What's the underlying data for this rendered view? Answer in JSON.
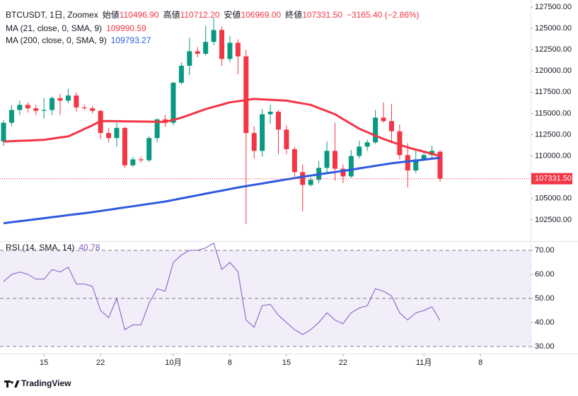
{
  "chart_data": [
    {
      "type": "candlestick",
      "legend": {
        "symbol": "BTCUSDT, 1日, Zoomex",
        "items": [
          {
            "label": "始値",
            "value": "110496.90"
          },
          {
            "label": "高値",
            "value": "110712.20"
          },
          {
            "label": "安値",
            "value": "106969.00"
          },
          {
            "label": "終値",
            "value": "107331.50"
          }
        ],
        "change": "−3165.40 (−2.86%)"
      },
      "last_price_label": "107331.50",
      "up_color": "#089981",
      "down_color": "#f23645",
      "xlim": [
        -0.44,
        65.2
      ],
      "ylim": [
        100080,
        128320
      ],
      "yticks": [
        {
          "value": 102500,
          "label": "102500.00"
        },
        {
          "value": 105000,
          "label": "105000.00"
        },
        {
          "value": 107500,
          "label": "107500.00"
        },
        {
          "value": 110000,
          "label": "110000.00"
        },
        {
          "value": 112500,
          "label": "112500.00"
        },
        {
          "value": 115000,
          "label": "115000.00"
        },
        {
          "value": 117500,
          "label": "117500.00"
        },
        {
          "value": 120000,
          "label": "120000.00"
        },
        {
          "value": 122500,
          "label": "122500.00"
        },
        {
          "value": 125000,
          "label": "125000.00"
        },
        {
          "value": 127500,
          "label": "127500.00"
        }
      ],
      "candles": [
        {
          "open": 111700,
          "high": 114200,
          "low": 111200,
          "close": 113900
        },
        {
          "open": 113900,
          "high": 116000,
          "low": 113500,
          "close": 115400
        },
        {
          "open": 115400,
          "high": 116500,
          "low": 114800,
          "close": 116000
        },
        {
          "open": 116000,
          "high": 116300,
          "low": 115100,
          "close": 115600
        },
        {
          "open": 115600,
          "high": 116000,
          "low": 114800,
          "close": 115300
        },
        {
          "open": 115300,
          "high": 116800,
          "low": 114400,
          "close": 115400
        },
        {
          "open": 115400,
          "high": 117000,
          "low": 114800,
          "close": 116800
        },
        {
          "open": 116800,
          "high": 117300,
          "low": 114800,
          "close": 116500
        },
        {
          "open": 116500,
          "high": 117900,
          "low": 116200,
          "close": 117100
        },
        {
          "open": 117100,
          "high": 117500,
          "low": 115200,
          "close": 115700
        },
        {
          "open": 115700,
          "high": 116000,
          "low": 115400,
          "close": 115600
        },
        {
          "open": 115600,
          "high": 115900,
          "low": 115000,
          "close": 115300
        },
        {
          "open": 115300,
          "high": 115400,
          "low": 112000,
          "close": 112700
        },
        {
          "open": 112700,
          "high": 113300,
          "low": 111600,
          "close": 112100
        },
        {
          "open": 112100,
          "high": 113900,
          "low": 111100,
          "close": 113300
        },
        {
          "open": 113300,
          "high": 113400,
          "low": 108600,
          "close": 108900
        },
        {
          "open": 108900,
          "high": 109900,
          "low": 108700,
          "close": 109600
        },
        {
          "open": 109600,
          "high": 109900,
          "low": 109200,
          "close": 109500
        },
        {
          "open": 109500,
          "high": 112300,
          "low": 109300,
          "close": 112100
        },
        {
          "open": 112100,
          "high": 114400,
          "low": 111600,
          "close": 114300
        },
        {
          "open": 114300,
          "high": 114800,
          "low": 113400,
          "close": 113900
        },
        {
          "open": 113900,
          "high": 118700,
          "low": 113600,
          "close": 118600
        },
        {
          "open": 118600,
          "high": 121000,
          "low": 118400,
          "close": 120600
        },
        {
          "open": 120600,
          "high": 123900,
          "low": 119500,
          "close": 122300
        },
        {
          "open": 122300,
          "high": 122800,
          "low": 121600,
          "close": 122000
        },
        {
          "open": 122000,
          "high": 125300,
          "low": 121800,
          "close": 123400
        },
        {
          "open": 123400,
          "high": 126200,
          "low": 123000,
          "close": 124800
        },
        {
          "open": 124800,
          "high": 125200,
          "low": 120600,
          "close": 121400
        },
        {
          "open": 121400,
          "high": 124100,
          "low": 121000,
          "close": 123300
        },
        {
          "open": 123300,
          "high": 123700,
          "low": 119600,
          "close": 121700
        },
        {
          "open": 121700,
          "high": 122500,
          "low": 102000,
          "close": 112700
        },
        {
          "open": 112700,
          "high": 113500,
          "low": 109700,
          "close": 110600
        },
        {
          "open": 110600,
          "high": 115500,
          "low": 109900,
          "close": 114900
        },
        {
          "open": 114900,
          "high": 116000,
          "low": 113800,
          "close": 115200
        },
        {
          "open": 115200,
          "high": 115400,
          "low": 110200,
          "close": 113100
        },
        {
          "open": 113100,
          "high": 113600,
          "low": 110200,
          "close": 110800
        },
        {
          "open": 110800,
          "high": 111100,
          "low": 107600,
          "close": 108100
        },
        {
          "open": 108100,
          "high": 109000,
          "low": 103500,
          "close": 106600
        },
        {
          "open": 106600,
          "high": 107500,
          "low": 106400,
          "close": 107200
        },
        {
          "open": 107200,
          "high": 109400,
          "low": 106800,
          "close": 108600
        },
        {
          "open": 108600,
          "high": 111700,
          "low": 107900,
          "close": 110600
        },
        {
          "open": 110600,
          "high": 113900,
          "low": 107100,
          "close": 108500
        },
        {
          "open": 108500,
          "high": 109000,
          "low": 106800,
          "close": 107600
        },
        {
          "open": 107600,
          "high": 110700,
          "low": 107400,
          "close": 110000
        },
        {
          "open": 110000,
          "high": 111800,
          "low": 109700,
          "close": 111100
        },
        {
          "open": 111100,
          "high": 111900,
          "low": 110600,
          "close": 111600
        },
        {
          "open": 111600,
          "high": 115400,
          "low": 111400,
          "close": 114500
        },
        {
          "open": 114500,
          "high": 116300,
          "low": 113900,
          "close": 114100
        },
        {
          "open": 114100,
          "high": 116100,
          "low": 111500,
          "close": 112900
        },
        {
          "open": 112900,
          "high": 113700,
          "low": 109600,
          "close": 110100
        },
        {
          "open": 110100,
          "high": 111500,
          "low": 106300,
          "close": 108300
        },
        {
          "open": 108300,
          "high": 110800,
          "low": 108000,
          "close": 109600
        },
        {
          "open": 109600,
          "high": 110500,
          "low": 109400,
          "close": 110100
        },
        {
          "open": 110100,
          "high": 111200,
          "low": 109700,
          "close": 110600
        },
        {
          "open": 110496.9,
          "high": 110712.2,
          "low": 106969,
          "close": 107331.5
        }
      ],
      "series": [
        {
          "name": "MA (21, close, 0, SMA, 9)",
          "last_label": "109990.59",
          "color": "#f23645",
          "values": [
            111700,
            111740,
            111780,
            111820,
            111860,
            111900,
            112030,
            112170,
            112300,
            112730,
            113170,
            113600,
            114100,
            114090,
            114080,
            114070,
            114060,
            114040,
            114030,
            114010,
            114000,
            114250,
            114500,
            114830,
            115170,
            115500,
            115770,
            116030,
            116300,
            116430,
            116570,
            116700,
            116650,
            116600,
            116550,
            116500,
            116330,
            116170,
            116000,
            115630,
            115270,
            114900,
            114330,
            113770,
            113200,
            112800,
            112400,
            112000,
            111670,
            111330,
            111000,
            110750,
            110500,
            110250,
            109990.59
          ]
        },
        {
          "name": "MA (200, close, 0, SMA, 9)",
          "last_label": "109793.27",
          "color": "#2c5ae0",
          "values": [
            102100,
            102220,
            102340,
            102450,
            102570,
            102690,
            102810,
            102930,
            103050,
            103160,
            103280,
            103400,
            103540,
            103680,
            103820,
            103960,
            104090,
            104230,
            104370,
            104510,
            104650,
            104830,
            105020,
            105200,
            105380,
            105570,
            105750,
            105930,
            106120,
            106300,
            106460,
            106620,
            106770,
            106930,
            107090,
            107250,
            107400,
            107560,
            107700,
            107840,
            107980,
            108110,
            108250,
            108390,
            108540,
            108690,
            108840,
            108990,
            109140,
            109250,
            109360,
            109460,
            109570,
            109680,
            109793.27
          ]
        }
      ]
    },
    {
      "type": "line",
      "name": "RSI (14, SMA, 14)",
      "last_label": "40.78",
      "color": "#7e57c2",
      "band": [
        30,
        70
      ],
      "levels": [
        70,
        50,
        30
      ],
      "xlim": [
        -0.44,
        65.2
      ],
      "ylim": [
        27.06,
        73.53
      ],
      "yticks": [
        {
          "value": 30,
          "label": "30.00"
        },
        {
          "value": 40,
          "label": "40.00"
        },
        {
          "value": 50,
          "label": "50.00"
        },
        {
          "value": 60,
          "label": "60.00"
        },
        {
          "value": 70,
          "label": "70.00"
        }
      ],
      "xticks": [
        {
          "value": 5,
          "label": "15"
        },
        {
          "value": 12,
          "label": "22"
        },
        {
          "value": 21,
          "label": "10月"
        },
        {
          "value": 28,
          "label": "8"
        },
        {
          "value": 35,
          "label": "15"
        },
        {
          "value": 42,
          "label": "22"
        },
        {
          "value": 52,
          "label": "11月"
        },
        {
          "value": 59,
          "label": "8"
        }
      ],
      "values": [
        57,
        60,
        61,
        60,
        58,
        58,
        62,
        61,
        63,
        56,
        56,
        55,
        45,
        42,
        50,
        37,
        39,
        39,
        48,
        54,
        53,
        65,
        68,
        70,
        70,
        71,
        73,
        62,
        65,
        61,
        41,
        38,
        47,
        47.5,
        43,
        40,
        37,
        35,
        37,
        40,
        44,
        41,
        39.5,
        44,
        46,
        47,
        54,
        53,
        51,
        44,
        41,
        44,
        45,
        46.5,
        40.78
      ]
    }
  ],
  "brand": "TradingView"
}
